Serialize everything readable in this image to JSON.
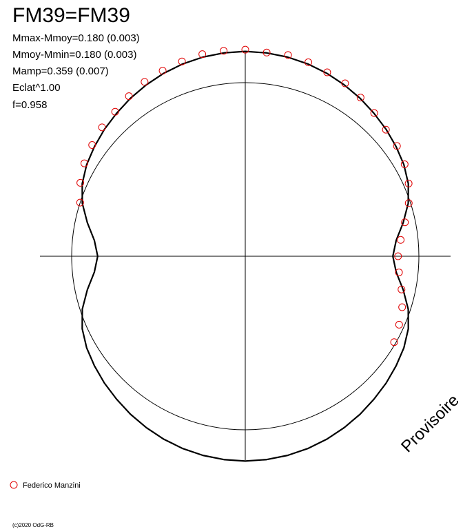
{
  "chart_data": {
    "type": "polar",
    "title": "FM39=FM39",
    "stats": [
      "Mmax-Mmoy=0.180 (0.003)",
      "Mmoy-Mmin=0.180 (0.003)",
      "Mamp=0.359 (0.007)",
      "Eclat^1.00",
      "f=0.958"
    ],
    "reference_r": 1,
    "curve_color": "#000000",
    "curve": {
      "theta": [
        0,
        6,
        12,
        18,
        24,
        30,
        36,
        42,
        48,
        54,
        60,
        66,
        72,
        78,
        84,
        90,
        96,
        102,
        108,
        114,
        120,
        126,
        132,
        138,
        144,
        150,
        156,
        162,
        168,
        174,
        180,
        186,
        192,
        198,
        204,
        210,
        216,
        222,
        228,
        234,
        240,
        246,
        252,
        258,
        264,
        270,
        276,
        282,
        288,
        294,
        300,
        306,
        312,
        318,
        324,
        330,
        336,
        342,
        348,
        354
      ],
      "r": [
        1.18,
        1.178,
        1.173,
        1.165,
        1.154,
        1.14,
        1.125,
        1.108,
        1.092,
        1.074,
        1.055,
        1.028,
        0.987,
        0.93,
        0.874,
        0.85,
        0.874,
        0.93,
        0.987,
        1.028,
        1.055,
        1.074,
        1.092,
        1.108,
        1.125,
        1.14,
        1.154,
        1.165,
        1.173,
        1.178,
        1.18,
        1.178,
        1.173,
        1.165,
        1.154,
        1.14,
        1.125,
        1.108,
        1.092,
        1.074,
        1.055,
        1.028,
        0.987,
        0.93,
        0.874,
        0.85,
        0.874,
        0.93,
        0.987,
        1.028,
        1.055,
        1.074,
        1.092,
        1.108,
        1.125,
        1.14,
        1.154,
        1.165,
        1.173,
        1.178
      ]
    },
    "series": [
      {
        "name": "Federico Manzini",
        "color": "#e00000",
        "theta": [
          288,
          294,
          300,
          306,
          312,
          318,
          324,
          330,
          336,
          342,
          348,
          354,
          0,
          6,
          12,
          18,
          24,
          30,
          36,
          42,
          48,
          54,
          60,
          66,
          72,
          78,
          84,
          90,
          96,
          102,
          108,
          114,
          120
        ],
        "r": [
          1.0,
          1.04,
          1.07,
          1.09,
          1.11,
          1.12,
          1.14,
          1.16,
          1.17,
          1.18,
          1.19,
          1.19,
          1.19,
          1.18,
          1.185,
          1.175,
          1.16,
          1.15,
          1.13,
          1.11,
          1.09,
          1.08,
          1.06,
          1.03,
          0.99,
          0.94,
          0.9,
          0.88,
          0.89,
          0.92,
          0.95,
          0.97,
          0.99
        ]
      }
    ],
    "watermark": "Provisoire",
    "credit": "(c)2020 OdG-RB"
  }
}
